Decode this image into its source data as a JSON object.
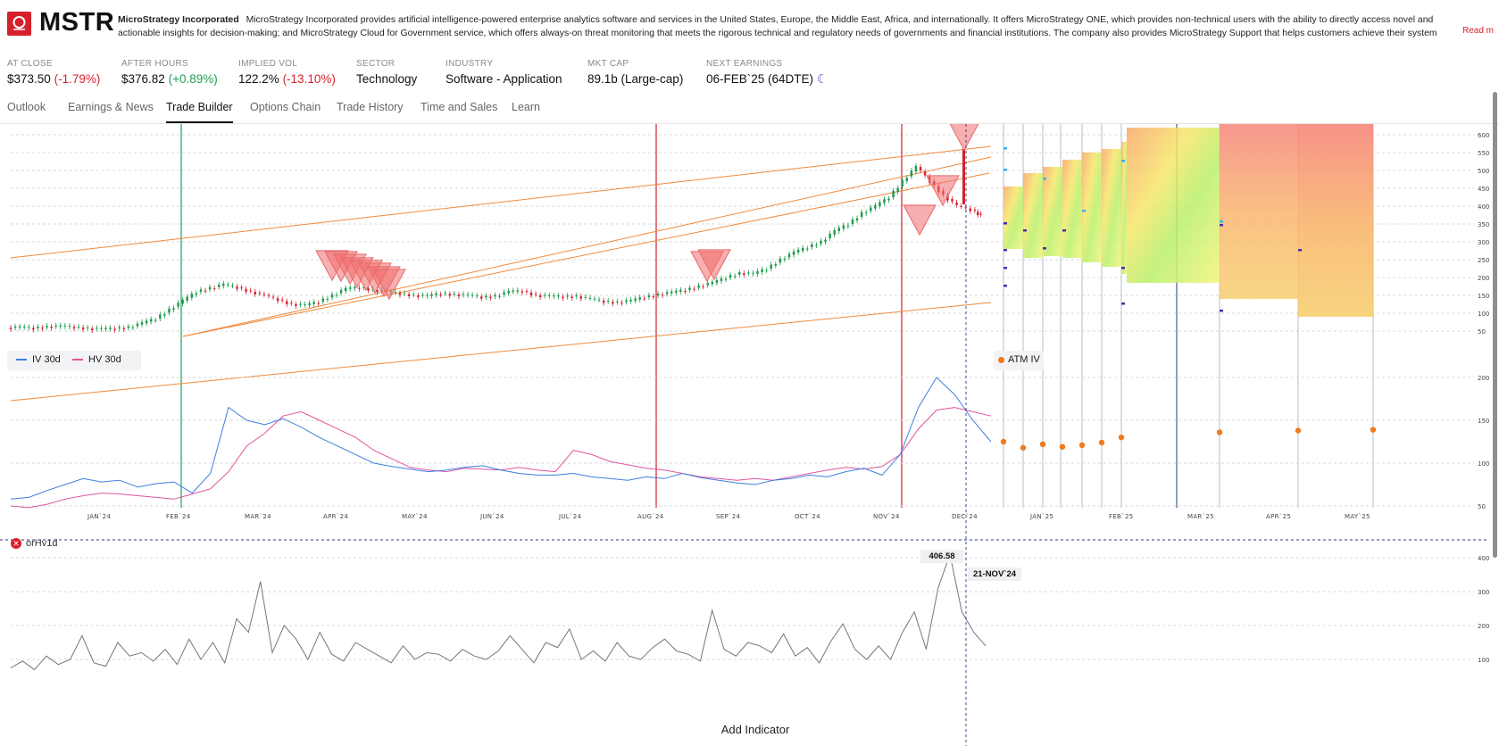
{
  "header": {
    "ticker": "MSTR",
    "company_name": "MicroStrategy Incorporated",
    "description": "MicroStrategy Incorporated provides artificial intelligence-powered enterprise analytics software and services in the United States, Europe, the Middle East, Africa, and internationally. It offers MicroStrategy ONE, which provides non-technical users with the ability to directly access novel and actionable insights for decision-making; and MicroStrategy Cloud for Government service, which offers always-on threat monitoring that meets the rigorous technical and regulatory needs of governments and financial institutions. The company also provides MicroStrategy Support that helps customers achieve their system availability and usage goals through highly responsive…",
    "read_more": "Read m"
  },
  "stats": {
    "at_close": {
      "label": "AT CLOSE",
      "value": "$373.50",
      "change": "(-1.79%)"
    },
    "after_hours": {
      "label": "AFTER HOURS",
      "value": "$376.82",
      "change": "(+0.89%)"
    },
    "implied_vol": {
      "label": "IMPLIED VOL",
      "value": "122.2%",
      "change": "(-13.10%)"
    },
    "sector": {
      "label": "SECTOR",
      "value": "Technology"
    },
    "industry": {
      "label": "INDUSTRY",
      "value": "Software - Application"
    },
    "mkt_cap": {
      "label": "MKT CAP",
      "value": "89.1b (Large-cap)"
    },
    "next_earnings": {
      "label": "NEXT EARNINGS",
      "value": "06-FEB`25 (64DTE)",
      "icon": "moon-icon"
    }
  },
  "tabs": [
    {
      "label": "Outlook",
      "active": false
    },
    {
      "label": "Earnings & News",
      "active": false
    },
    {
      "label": "Trade Builder",
      "active": true
    },
    {
      "label": "Options Chain",
      "active": false
    },
    {
      "label": "Trade History",
      "active": false
    },
    {
      "label": "Time and Sales",
      "active": false
    },
    {
      "label": "Learn",
      "active": false
    }
  ],
  "legend": {
    "iv": {
      "label": "IV 30d",
      "color": "#3d7fe0"
    },
    "hv": {
      "label": "HV 30d",
      "color": "#e0559c"
    },
    "atm": {
      "label": "ATM IV",
      "color": "#f07a1c"
    }
  },
  "indicator": {
    "label": "orHv1d"
  },
  "crosshair": {
    "price": "406.58",
    "date": "21-NOV`24"
  },
  "add_indicator": "Add Indicator",
  "colors": {
    "up": "#1a9a4a",
    "down": "#d6202c",
    "trend": "#f08a3c",
    "atm": "#f07a1c",
    "orhv": "#6e7680"
  },
  "chart_data": [
    {
      "type": "candlestick",
      "title": "",
      "x_ticks": [
        "JAN`24",
        "FEB`24",
        "MAR`24",
        "APR`24",
        "MAY`24",
        "JUN`24",
        "JUL`24",
        "AUG`24",
        "SEP`24",
        "OCT`24",
        "NOV`24",
        "DEC`24",
        "JAN`25",
        "FEB`25",
        "MAR`25",
        "APR`25",
        "MAY`25"
      ],
      "y_ticks": [
        "600",
        "550",
        "500",
        "450",
        "400",
        "350",
        "300",
        "250",
        "200",
        "150",
        "100",
        "50"
      ],
      "series": [
        {
          "values": [
            [
              0,
              59
            ],
            [
              6,
              60
            ],
            [
              12,
              58
            ],
            [
              18,
              62
            ],
            [
              24,
              63
            ],
            [
              30,
              61
            ],
            [
              36,
              57
            ],
            [
              42,
              55
            ],
            [
              48,
              57
            ],
            [
              54,
              60
            ],
            [
              60,
              72
            ],
            [
              66,
              85
            ],
            [
              72,
              110
            ],
            [
              78,
              135
            ],
            [
              84,
              160
            ],
            [
              90,
              170
            ],
            [
              96,
              180
            ],
            [
              102,
              172
            ],
            [
              108,
              160
            ],
            [
              114,
              150
            ],
            [
              120,
              138
            ],
            [
              126,
              125
            ],
            [
              132,
              122
            ],
            [
              138,
              132
            ],
            [
              144,
              150
            ],
            [
              150,
              168
            ],
            [
              156,
              172
            ],
            [
              162,
              165
            ],
            [
              168,
              160
            ],
            [
              174,
              155
            ],
            [
              180,
              150
            ],
            [
              186,
              148
            ],
            [
              192,
              155
            ],
            [
              198,
              152
            ],
            [
              204,
              150
            ],
            [
              210,
              145
            ],
            [
              216,
              148
            ],
            [
              222,
              160
            ],
            [
              228,
              162
            ],
            [
              234,
              150
            ],
            [
              240,
              147
            ],
            [
              246,
              146
            ],
            [
              252,
              147
            ],
            [
              258,
              140
            ],
            [
              264,
              133
            ],
            [
              270,
              130
            ],
            [
              276,
              135
            ],
            [
              282,
              145
            ],
            [
              288,
              152
            ],
            [
              294,
              158
            ],
            [
              300,
              165
            ],
            [
              306,
              175
            ],
            [
              312,
              185
            ],
            [
              318,
              200
            ],
            [
              324,
              212
            ],
            [
              330,
              210
            ],
            [
              336,
              225
            ],
            [
              342,
              250
            ],
            [
              348,
              270
            ],
            [
              354,
              285
            ],
            [
              360,
              300
            ],
            [
              366,
              330
            ],
            [
              372,
              350
            ],
            [
              378,
              380
            ],
            [
              384,
              400
            ],
            [
              390,
              425
            ],
            [
              396,
              470
            ],
            [
              402,
              510
            ],
            [
              408,
              470
            ],
            [
              414,
              430
            ],
            [
              420,
              400
            ],
            [
              426,
              390
            ],
            [
              430,
              373
            ]
          ]
        }
      ],
      "vertical_markers": [
        {
          "date": "FEB`24",
          "color": "#1aa060"
        },
        {
          "date": "AUG`24",
          "color": "#d6202c"
        },
        {
          "date": "NOV`24",
          "color": "#d6202c"
        }
      ]
    },
    {
      "type": "line",
      "title": "",
      "y_ticks": [
        "200",
        "150",
        "100",
        "50"
      ],
      "series": [
        {
          "name": "IV 30d",
          "values": [
            58,
            60,
            68,
            75,
            82,
            78,
            80,
            72,
            76,
            78,
            65,
            88,
            165,
            150,
            145,
            152,
            142,
            130,
            120,
            110,
            100,
            96,
            93,
            90,
            92,
            95,
            97,
            92,
            88,
            86,
            86,
            88,
            84,
            82,
            80,
            84,
            82,
            88,
            83,
            80,
            77,
            75,
            80,
            82,
            86,
            84,
            90,
            94,
            86,
            110,
            165,
            200,
            180,
            150,
            125
          ]
        },
        {
          "name": "HV 30d",
          "values": [
            50,
            48,
            52,
            58,
            62,
            65,
            64,
            62,
            60,
            58,
            64,
            70,
            90,
            120,
            135,
            155,
            160,
            150,
            140,
            130,
            115,
            105,
            95,
            92,
            90,
            94,
            93,
            92,
            95,
            92,
            90,
            115,
            110,
            102,
            98,
            94,
            92,
            88,
            84,
            82,
            80,
            82,
            80,
            84,
            88,
            92,
            95,
            93,
            96,
            110,
            140,
            162,
            165,
            160,
            155
          ]
        },
        {
          "name": "ATM IV",
          "values": [
            125,
            118,
            122,
            119,
            121,
            124,
            130,
            136,
            138,
            139
          ]
        }
      ]
    },
    {
      "type": "line",
      "title": "",
      "y_ticks": [
        "400",
        "300",
        "200",
        "100"
      ],
      "series": [
        {
          "name": "orHv1d",
          "values": [
            75,
            95,
            70,
            110,
            85,
            100,
            170,
            90,
            80,
            150,
            110,
            120,
            95,
            130,
            85,
            160,
            100,
            150,
            90,
            220,
            180,
            330,
            120,
            200,
            160,
            100,
            180,
            115,
            95,
            150,
            130,
            110,
            90,
            140,
            100,
            120,
            115,
            95,
            130,
            110,
            100,
            125,
            170,
            130,
            90,
            150,
            135,
            190,
            100,
            125,
            95,
            150,
            110,
            100,
            135,
            160,
            125,
            115,
            95,
            245,
            130,
            110,
            150,
            140,
            120,
            175,
            110,
            135,
            90,
            155,
            205,
            130,
            100,
            140,
            100,
            180,
            240,
            130,
            310,
            410,
            240,
            180,
            140
          ]
        }
      ]
    }
  ]
}
